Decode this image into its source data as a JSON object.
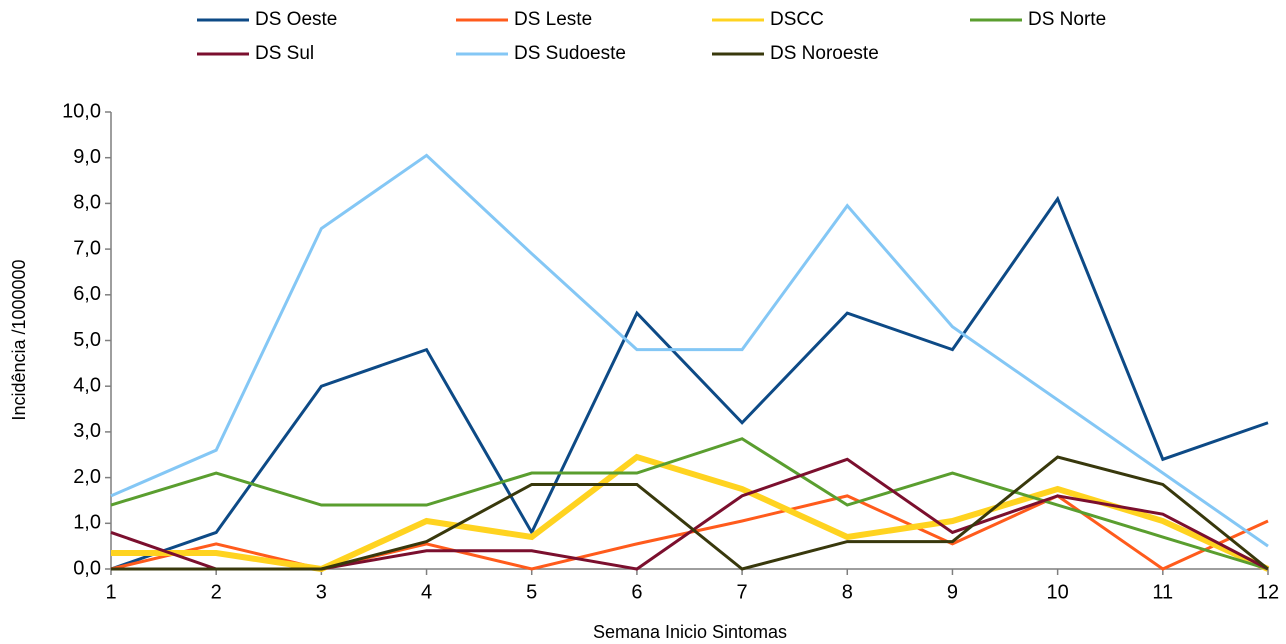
{
  "chart_data": {
    "type": "line",
    "x_label": "Semana Inicio Sintomas",
    "y_label": "Incidência /1000000",
    "x": [
      1,
      2,
      3,
      4,
      5,
      6,
      7,
      8,
      9,
      10,
      11,
      12
    ],
    "xlim": [
      1,
      12
    ],
    "xticks": [
      1,
      2,
      3,
      4,
      5,
      6,
      7,
      8,
      9,
      10,
      11,
      12
    ],
    "ylim": [
      0,
      10
    ],
    "yticks": [
      {
        "value": 0,
        "label": "0,0"
      },
      {
        "value": 1,
        "label": "1,0"
      },
      {
        "value": 2,
        "label": "2,0"
      },
      {
        "value": 3,
        "label": "3,0"
      },
      {
        "value": 4,
        "label": "4,0"
      },
      {
        "value": 5,
        "label": "5,0"
      },
      {
        "value": 6,
        "label": "6,0"
      },
      {
        "value": 7,
        "label": "7,0"
      },
      {
        "value": 8,
        "label": "8,0"
      },
      {
        "value": 9,
        "label": "9,0"
      },
      {
        "value": 10,
        "label": "10,0"
      }
    ],
    "grid": false,
    "legend": "top",
    "series": [
      {
        "name": "DS Oeste",
        "color": "#0d4a86",
        "width": 3,
        "values": [
          0.0,
          0.8,
          4.0,
          4.8,
          0.8,
          5.6,
          3.2,
          5.6,
          4.8,
          8.1,
          2.4,
          3.2
        ]
      },
      {
        "name": "DS Leste",
        "color": "#ff5b1c",
        "width": 3,
        "values": [
          0.0,
          0.55,
          0.0,
          0.55,
          0.0,
          0.55,
          1.05,
          1.6,
          0.55,
          1.6,
          0.0,
          1.05
        ]
      },
      {
        "name": "DSCC",
        "color": "#ffd320",
        "width": 6,
        "values": [
          0.35,
          0.35,
          0.0,
          1.05,
          0.7,
          2.45,
          1.75,
          0.7,
          1.05,
          1.75,
          1.05,
          0.0
        ]
      },
      {
        "name": "DS Norte",
        "color": "#5a9e2f",
        "width": 3,
        "values": [
          1.4,
          2.1,
          1.4,
          1.4,
          2.1,
          2.1,
          2.85,
          1.4,
          2.1,
          1.4,
          0.7,
          0.0
        ]
      },
      {
        "name": "DS Sul",
        "color": "#7b0f2e",
        "width": 3,
        "values": [
          0.8,
          0.0,
          0.0,
          0.4,
          0.4,
          0.0,
          1.6,
          2.4,
          0.8,
          1.6,
          1.2,
          0.0
        ]
      },
      {
        "name": "DS Sudoeste",
        "color": "#84c7f5",
        "width": 3,
        "values": [
          1.6,
          2.6,
          7.45,
          9.05,
          6.9,
          4.8,
          4.8,
          7.95,
          5.3,
          3.7,
          2.1,
          0.5
        ]
      },
      {
        "name": "DS Noroeste",
        "color": "#38380c",
        "width": 3,
        "values": [
          0.0,
          0.0,
          0.0,
          0.6,
          1.85,
          1.85,
          0.0,
          0.6,
          0.6,
          2.45,
          1.85,
          0.0
        ]
      }
    ]
  }
}
